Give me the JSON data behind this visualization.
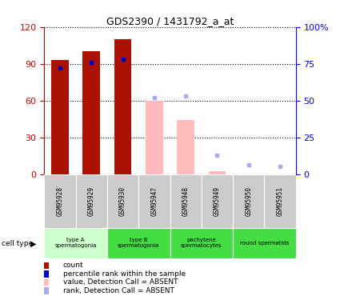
{
  "title": "GDS2390 / 1431792_a_at",
  "samples": [
    "GSM95928",
    "GSM95929",
    "GSM95930",
    "GSM95947",
    "GSM95948",
    "GSM95949",
    "GSM95950",
    "GSM95951"
  ],
  "bar_values": [
    93,
    100,
    110,
    null,
    null,
    null,
    null,
    null
  ],
  "absent_bar_values": [
    null,
    null,
    null,
    60,
    44,
    2,
    null,
    null
  ],
  "rank_present": [
    72,
    76,
    78,
    null,
    null,
    null,
    null,
    null
  ],
  "rank_absent": [
    null,
    null,
    null,
    52,
    53,
    13,
    6,
    5
  ],
  "bar_color_present": "#aa1100",
  "bar_color_absent": "#ffbbbb",
  "rank_color_present": "#0000cc",
  "rank_color_absent": "#aaaaee",
  "ylim": [
    0,
    120
  ],
  "y_ticks_left": [
    0,
    30,
    60,
    90,
    120
  ],
  "y_ticks_right": [
    0,
    25,
    50,
    75,
    100
  ],
  "y_tick_labels_right": [
    "0",
    "25",
    "50",
    "75",
    "100%"
  ],
  "cell_type_groups": [
    {
      "label_line1": "type A",
      "label_line2": "spermatogonia",
      "start": 0,
      "end": 1,
      "color": "#ccffcc"
    },
    {
      "label_line1": "type B",
      "label_line2": "spermatogonia",
      "start": 2,
      "end": 3,
      "color": "#44dd44"
    },
    {
      "label_line1": "pachytene",
      "label_line2": "spermatocytes",
      "start": 4,
      "end": 5,
      "color": "#44dd44"
    },
    {
      "label_line1": "round spermatids",
      "label_line2": "",
      "start": 6,
      "end": 7,
      "color": "#44dd44"
    }
  ],
  "cell_type_label": "cell type",
  "legend_items": [
    {
      "color": "#aa1100",
      "label": "count"
    },
    {
      "color": "#0000cc",
      "label": "percentile rank within the sample"
    },
    {
      "color": "#ffbbbb",
      "label": "value, Detection Call = ABSENT"
    },
    {
      "color": "#aaaaee",
      "label": "rank, Detection Call = ABSENT"
    }
  ],
  "fig_width": 4.25,
  "fig_height": 3.75,
  "dpi": 100
}
